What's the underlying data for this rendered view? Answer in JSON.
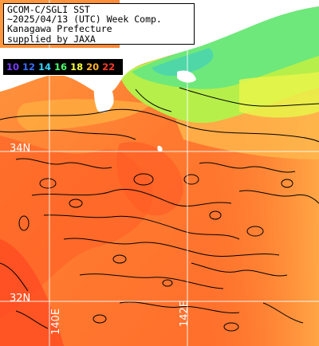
{
  "title": {
    "line1": "GCOM-C/SGLI SST",
    "line2": "~2025/04/13 (UTC) Week Comp.",
    "line3": "Kanagawa Prefecture",
    "line4": "supplied by JAXA"
  },
  "legend": {
    "labels": [
      "10",
      "12",
      "14",
      "16",
      "18",
      "20",
      "22"
    ],
    "colors": [
      "#7a3cff",
      "#3b6dff",
      "#35d6ff",
      "#4dff70",
      "#f7ff3c",
      "#ffb52b",
      "#ff3a24"
    ]
  },
  "grid_labels": {
    "lat1": "34N",
    "lat2": "32N",
    "lon1": "140E",
    "lon2": "142E"
  },
  "colors": {
    "land": "#ffffff",
    "coast_cool": "#6ee86e",
    "warm_sea": "#ff8c3a",
    "hot_sea": "#ff5a28",
    "contour": "#000000",
    "grid": "#ffffff"
  }
}
